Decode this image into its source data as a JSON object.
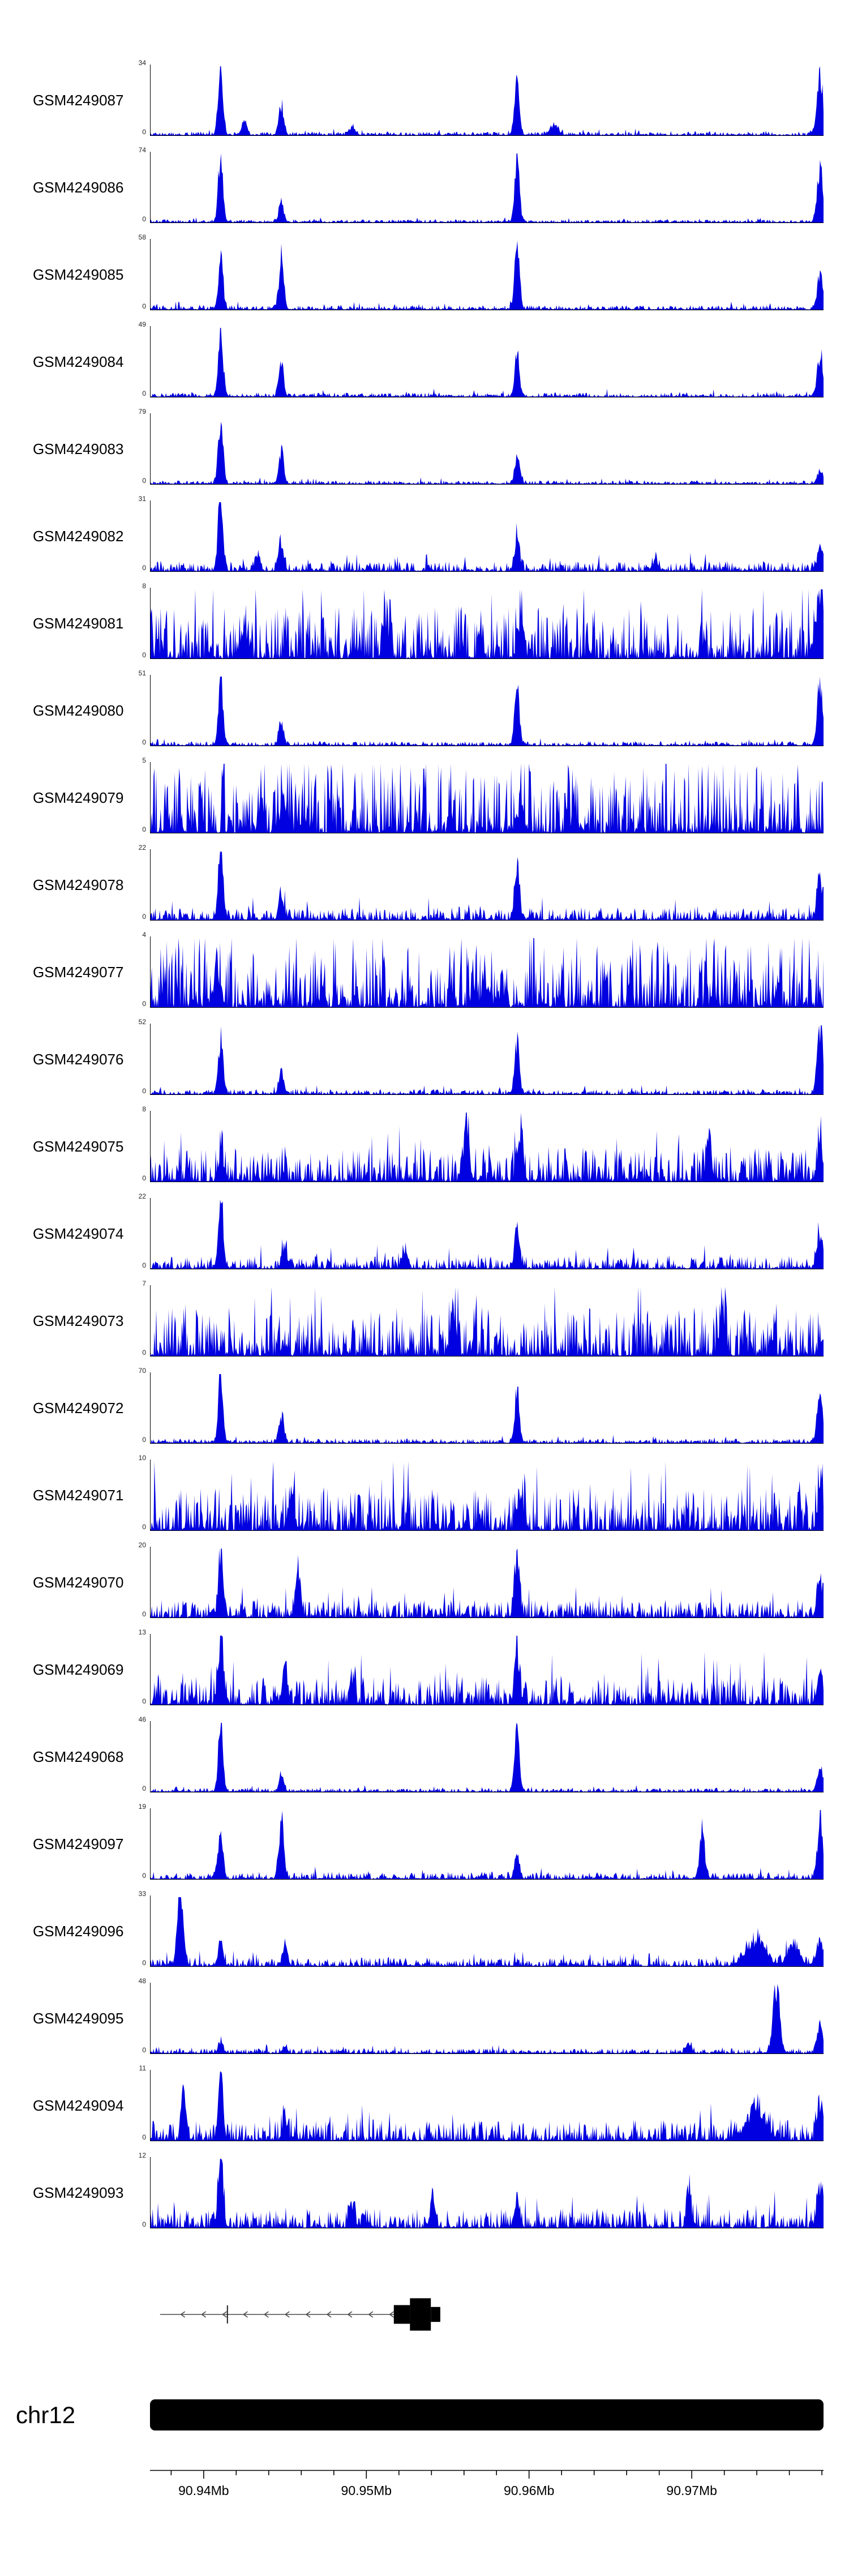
{
  "signal_color": "#0000e0",
  "y_zero_label": "0",
  "chromosome": {
    "label": "chr12"
  },
  "axis": {
    "start_mb": 90.9367,
    "end_mb": 90.9781,
    "minor_step_mb": 0.002,
    "major_every_n_minor": 5,
    "major_labels": [
      {
        "text": "90.94Mb",
        "mb": 90.94
      },
      {
        "text": "90.95Mb",
        "mb": 90.95
      },
      {
        "text": "90.96Mb",
        "mb": 90.96
      },
      {
        "text": "90.97Mb",
        "mb": 90.97
      }
    ]
  },
  "gene_track": {
    "strand": "-",
    "line_start": 0.015,
    "line_end": 0.43,
    "arrow_spacing": 0.031,
    "exon_tick_x": 0.115,
    "exons": [
      {
        "x": 0.362,
        "w": 0.024,
        "h": 0.3
      },
      {
        "x": 0.386,
        "w": 0.031,
        "h": 0.52
      },
      {
        "x": 0.417,
        "w": 0.014,
        "h": 0.24
      }
    ]
  },
  "chart_data": {
    "type": "area",
    "title": "",
    "xlabel": "",
    "x_unit": "Mb",
    "x_range_mb": [
      90.9367,
      90.9781
    ],
    "grid": false,
    "legend": "none",
    "tracks": [
      {
        "name": "GSM4249087",
        "ymax": 34,
        "ylim": [
          0,
          34
        ],
        "noise": 0.05,
        "peaks": [
          [
            0.105,
            1.0,
            0.005
          ],
          [
            0.14,
            0.22,
            0.005
          ],
          [
            0.195,
            0.45,
            0.005
          ],
          [
            0.3,
            0.1,
            0.006
          ],
          [
            0.545,
            0.72,
            0.005
          ],
          [
            0.6,
            0.15,
            0.008
          ],
          [
            0.995,
            0.9,
            0.006
          ]
        ]
      },
      {
        "name": "GSM4249086",
        "ymax": 74,
        "ylim": [
          0,
          74
        ],
        "noise": 0.04,
        "peaks": [
          [
            0.105,
            1.0,
            0.005
          ],
          [
            0.195,
            0.3,
            0.005
          ],
          [
            0.545,
            0.95,
            0.005
          ],
          [
            0.995,
            0.8,
            0.006
          ]
        ]
      },
      {
        "name": "GSM4249085",
        "ymax": 58,
        "ylim": [
          0,
          58
        ],
        "noise": 0.06,
        "peaks": [
          [
            0.105,
            0.8,
            0.005
          ],
          [
            0.195,
            0.75,
            0.005
          ],
          [
            0.545,
            1.0,
            0.005
          ],
          [
            0.995,
            0.5,
            0.006
          ]
        ]
      },
      {
        "name": "GSM4249084",
        "ymax": 49,
        "ylim": [
          0,
          49
        ],
        "noise": 0.06,
        "peaks": [
          [
            0.105,
            1.0,
            0.005
          ],
          [
            0.195,
            0.5,
            0.005
          ],
          [
            0.545,
            0.6,
            0.005
          ],
          [
            0.995,
            0.65,
            0.006
          ]
        ]
      },
      {
        "name": "GSM4249083",
        "ymax": 79,
        "ylim": [
          0,
          79
        ],
        "noise": 0.05,
        "peaks": [
          [
            0.105,
            1.0,
            0.005
          ],
          [
            0.195,
            0.45,
            0.005
          ],
          [
            0.545,
            0.4,
            0.005
          ],
          [
            0.995,
            0.2,
            0.006
          ]
        ]
      },
      {
        "name": "GSM4249082",
        "ymax": 31,
        "ylim": [
          0,
          31
        ],
        "noise": 0.14,
        "peaks": [
          [
            0.105,
            1.0,
            0.005
          ],
          [
            0.16,
            0.25,
            0.005
          ],
          [
            0.195,
            0.45,
            0.005
          ],
          [
            0.545,
            0.5,
            0.005
          ],
          [
            0.75,
            0.15,
            0.006
          ],
          [
            0.995,
            0.3,
            0.006
          ]
        ]
      },
      {
        "name": "GSM4249081",
        "ymax": 8,
        "ylim": [
          0,
          8
        ],
        "noise": 0.75,
        "peaks": [
          [
            0.14,
            0.5,
            0.006
          ],
          [
            0.35,
            0.6,
            0.006
          ],
          [
            0.55,
            0.5,
            0.006
          ],
          [
            0.995,
            0.6,
            0.006
          ]
        ]
      },
      {
        "name": "GSM4249080",
        "ymax": 51,
        "ylim": [
          0,
          51
        ],
        "noise": 0.06,
        "peaks": [
          [
            0.105,
            1.0,
            0.005
          ],
          [
            0.195,
            0.35,
            0.005
          ],
          [
            0.545,
            0.85,
            0.005
          ],
          [
            0.995,
            0.9,
            0.006
          ]
        ]
      },
      {
        "name": "GSM4249079",
        "ymax": 5,
        "ylim": [
          0,
          5
        ],
        "noise": 1.0,
        "peaks": [
          [
            0.2,
            0.3,
            0.008
          ],
          [
            0.55,
            0.3,
            0.008
          ]
        ]
      },
      {
        "name": "GSM4249078",
        "ymax": 22,
        "ylim": [
          0,
          22
        ],
        "noise": 0.18,
        "peaks": [
          [
            0.105,
            1.0,
            0.005
          ],
          [
            0.195,
            0.4,
            0.005
          ],
          [
            0.545,
            0.85,
            0.005
          ],
          [
            0.995,
            0.55,
            0.006
          ]
        ]
      },
      {
        "name": "GSM4249077",
        "ymax": 4,
        "ylim": [
          0,
          4
        ],
        "noise": 0.9,
        "peaks": [
          [
            0.1,
            0.3,
            0.008
          ],
          [
            0.5,
            0.2,
            0.008
          ]
        ]
      },
      {
        "name": "GSM4249076",
        "ymax": 52,
        "ylim": [
          0,
          52
        ],
        "noise": 0.07,
        "peaks": [
          [
            0.105,
            0.8,
            0.005
          ],
          [
            0.195,
            0.3,
            0.005
          ],
          [
            0.545,
            0.75,
            0.005
          ],
          [
            0.995,
            1.0,
            0.006
          ]
        ]
      },
      {
        "name": "GSM4249075",
        "ymax": 8,
        "ylim": [
          0,
          8
        ],
        "noise": 0.5,
        "peaks": [
          [
            0.105,
            0.4,
            0.005
          ],
          [
            0.47,
            1.0,
            0.005
          ],
          [
            0.55,
            0.7,
            0.005
          ],
          [
            0.83,
            0.6,
            0.005
          ],
          [
            0.995,
            0.5,
            0.006
          ]
        ]
      },
      {
        "name": "GSM4249074",
        "ymax": 22,
        "ylim": [
          0,
          22
        ],
        "noise": 0.18,
        "peaks": [
          [
            0.105,
            1.0,
            0.005
          ],
          [
            0.2,
            0.35,
            0.005
          ],
          [
            0.38,
            0.25,
            0.005
          ],
          [
            0.545,
            0.55,
            0.005
          ],
          [
            0.995,
            0.5,
            0.006
          ]
        ]
      },
      {
        "name": "GSM4249073",
        "ymax": 7,
        "ylim": [
          0,
          7
        ],
        "noise": 0.7,
        "peaks": [
          [
            0.45,
            0.6,
            0.006
          ],
          [
            0.85,
            0.5,
            0.006
          ]
        ]
      },
      {
        "name": "GSM4249072",
        "ymax": 70,
        "ylim": [
          0,
          70
        ],
        "noise": 0.06,
        "peaks": [
          [
            0.105,
            1.0,
            0.005
          ],
          [
            0.195,
            0.4,
            0.005
          ],
          [
            0.545,
            0.75,
            0.005
          ],
          [
            0.995,
            0.7,
            0.006
          ]
        ]
      },
      {
        "name": "GSM4249071",
        "ymax": 10,
        "ylim": [
          0,
          10
        ],
        "noise": 0.6,
        "peaks": [
          [
            0.21,
            0.6,
            0.006
          ],
          [
            0.55,
            0.5,
            0.006
          ],
          [
            0.995,
            0.5,
            0.006
          ]
        ]
      },
      {
        "name": "GSM4249070",
        "ymax": 20,
        "ylim": [
          0,
          20
        ],
        "noise": 0.25,
        "peaks": [
          [
            0.105,
            0.85,
            0.005
          ],
          [
            0.22,
            0.7,
            0.005
          ],
          [
            0.545,
            1.0,
            0.005
          ],
          [
            0.995,
            0.5,
            0.006
          ]
        ]
      },
      {
        "name": "GSM4249069",
        "ymax": 13,
        "ylim": [
          0,
          13
        ],
        "noise": 0.4,
        "peaks": [
          [
            0.105,
            0.9,
            0.005
          ],
          [
            0.2,
            0.6,
            0.005
          ],
          [
            0.3,
            0.4,
            0.005
          ],
          [
            0.545,
            0.8,
            0.005
          ],
          [
            0.995,
            0.45,
            0.006
          ]
        ]
      },
      {
        "name": "GSM4249068",
        "ymax": 46,
        "ylim": [
          0,
          46
        ],
        "noise": 0.05,
        "peaks": [
          [
            0.105,
            1.0,
            0.005
          ],
          [
            0.195,
            0.25,
            0.005
          ],
          [
            0.545,
            0.9,
            0.005
          ],
          [
            0.995,
            0.35,
            0.006
          ]
        ]
      },
      {
        "name": "GSM4249097",
        "ymax": 19,
        "ylim": [
          0,
          19
        ],
        "noise": 0.1,
        "peaks": [
          [
            0.105,
            0.65,
            0.005
          ],
          [
            0.195,
            0.85,
            0.005
          ],
          [
            0.545,
            0.3,
            0.005
          ],
          [
            0.82,
            0.7,
            0.005
          ],
          [
            0.995,
            0.85,
            0.006
          ]
        ]
      },
      {
        "name": "GSM4249096",
        "ymax": 33,
        "ylim": [
          0,
          33
        ],
        "noise": 0.12,
        "peaks": [
          [
            0.045,
            1.0,
            0.006
          ],
          [
            0.105,
            0.4,
            0.005
          ],
          [
            0.2,
            0.3,
            0.005
          ],
          [
            0.9,
            0.35,
            0.02
          ],
          [
            0.955,
            0.3,
            0.012
          ],
          [
            0.995,
            0.45,
            0.006
          ]
        ]
      },
      {
        "name": "GSM4249095",
        "ymax": 48,
        "ylim": [
          0,
          48
        ],
        "noise": 0.07,
        "peaks": [
          [
            0.105,
            0.15,
            0.005
          ],
          [
            0.2,
            0.1,
            0.005
          ],
          [
            0.8,
            0.15,
            0.006
          ],
          [
            0.93,
            1.0,
            0.007
          ],
          [
            0.995,
            0.4,
            0.006
          ]
        ]
      },
      {
        "name": "GSM4249094",
        "ymax": 11,
        "ylim": [
          0,
          11
        ],
        "noise": 0.3,
        "peaks": [
          [
            0.05,
            0.55,
            0.005
          ],
          [
            0.105,
            0.95,
            0.005
          ],
          [
            0.2,
            0.35,
            0.005
          ],
          [
            0.9,
            0.45,
            0.02
          ],
          [
            0.995,
            0.55,
            0.006
          ]
        ]
      },
      {
        "name": "GSM4249093",
        "ymax": 12,
        "ylim": [
          0,
          12
        ],
        "noise": 0.28,
        "peaks": [
          [
            0.105,
            1.0,
            0.005
          ],
          [
            0.3,
            0.35,
            0.005
          ],
          [
            0.42,
            0.45,
            0.005
          ],
          [
            0.545,
            0.4,
            0.005
          ],
          [
            0.8,
            0.5,
            0.005
          ],
          [
            0.995,
            0.6,
            0.006
          ]
        ]
      }
    ]
  }
}
